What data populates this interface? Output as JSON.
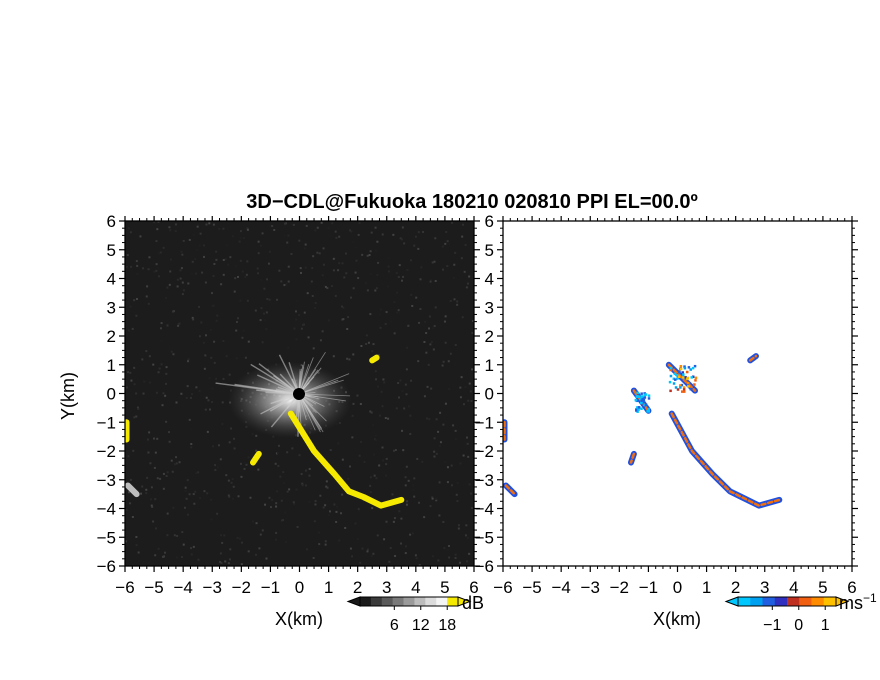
{
  "chart_data": {
    "type": "heatmap",
    "title": "3D−CDL@Fukuoka 180210 020810 PPI EL=00.0º",
    "panels": [
      {
        "name": "reflectivity-panel",
        "xlabel": "X(km)",
        "ylabel": "Y(km)",
        "xlim": [
          -6,
          6
        ],
        "ylim": [
          -6,
          6
        ],
        "xticks": [
          "−6",
          "−5",
          "−4",
          "−3",
          "−2",
          "−1",
          "0",
          "1",
          "2",
          "3",
          "4",
          "5",
          "6"
        ],
        "yticks": [
          "−6",
          "−5",
          "−4",
          "−3",
          "−2",
          "−1",
          "0",
          "1",
          "2",
          "3",
          "4",
          "5",
          "6"
        ],
        "background": "#1c1c1c",
        "echo_color": "#f5ea00",
        "colorbar": {
          "unit": "dB",
          "tick_labels": [
            "6",
            "12",
            "18"
          ],
          "colors": [
            "#1a1a1a",
            "#3a3a3a",
            "#5a5a5a",
            "#7a7a7a",
            "#9a9a9a",
            "#bcbcbc",
            "#dcdcdc",
            "#f4f4f4",
            "#f5ea00"
          ]
        },
        "features": [
          {
            "name": "echo-main-arm",
            "color": "yellow",
            "path": [
              [
                -0.3,
                -0.7
              ],
              [
                0.5,
                -2.0
              ],
              [
                1.2,
                -2.8
              ],
              [
                1.7,
                -3.4
              ],
              [
                2.2,
                -3.6
              ],
              [
                2.8,
                -3.9
              ],
              [
                3.5,
                -3.7
              ]
            ]
          },
          {
            "name": "echo-left-edge",
            "color": "yellow",
            "path": [
              [
                -5.95,
                -1.0
              ],
              [
                -5.95,
                -1.6
              ]
            ]
          },
          {
            "name": "echo-small",
            "color": "yellow",
            "path": [
              [
                -1.4,
                -2.1
              ],
              [
                -1.6,
                -2.4
              ]
            ]
          },
          {
            "name": "echo-ne",
            "color": "yellow",
            "path": [
              [
                2.5,
                1.15
              ],
              [
                2.65,
                1.25
              ]
            ]
          },
          {
            "name": "echo-sw-gray",
            "color": "gray",
            "path": [
              [
                -5.9,
                -3.2
              ],
              [
                -5.6,
                -3.5
              ]
            ]
          }
        ]
      },
      {
        "name": "velocity-panel",
        "xlabel": "X(km)",
        "xlim": [
          -6,
          6
        ],
        "ylim": [
          -6,
          6
        ],
        "xticks": [
          "−6",
          "−5",
          "−4",
          "−3",
          "−2",
          "−1",
          "0",
          "1",
          "2",
          "3",
          "4",
          "5",
          "6"
        ],
        "yticks": [
          "−6",
          "−5",
          "−4",
          "−3",
          "−2",
          "−1",
          "0",
          "1",
          "2",
          "3",
          "4",
          "5",
          "6"
        ],
        "colorbar": {
          "unit": "ms",
          "unit_exponent": "−1",
          "tick_labels": [
            "−1",
            "0",
            "1"
          ],
          "colors": [
            "#00c8ff",
            "#00a0f0",
            "#2060e0",
            "#3030c0",
            "#c03020",
            "#f06010",
            "#ff8c00",
            "#ffc000"
          ]
        },
        "features": [
          {
            "name": "vel-main-arm",
            "path": [
              [
                -0.2,
                -0.7
              ],
              [
                0.5,
                -2.0
              ],
              [
                1.2,
                -2.8
              ],
              [
                1.8,
                -3.4
              ],
              [
                2.2,
                -3.6
              ],
              [
                2.8,
                -3.9
              ],
              [
                3.5,
                -3.7
              ]
            ]
          },
          {
            "name": "vel-cyan-cluster",
            "path": [
              [
                -1.5,
                0.1
              ],
              [
                -1.0,
                -0.6
              ]
            ]
          },
          {
            "name": "vel-upper",
            "path": [
              [
                -0.3,
                1.0
              ],
              [
                0.6,
                0.1
              ]
            ]
          },
          {
            "name": "vel-left-edge",
            "path": [
              [
                -5.95,
                -1.0
              ],
              [
                -5.95,
                -1.6
              ]
            ]
          },
          {
            "name": "vel-sw",
            "path": [
              [
                -5.9,
                -3.2
              ],
              [
                -5.6,
                -3.5
              ]
            ]
          },
          {
            "name": "vel-ne",
            "path": [
              [
                2.5,
                1.15
              ],
              [
                2.7,
                1.3
              ]
            ]
          },
          {
            "name": "vel-small",
            "path": [
              [
                -1.5,
                -2.1
              ],
              [
                -1.6,
                -2.4
              ]
            ]
          }
        ]
      }
    ]
  }
}
